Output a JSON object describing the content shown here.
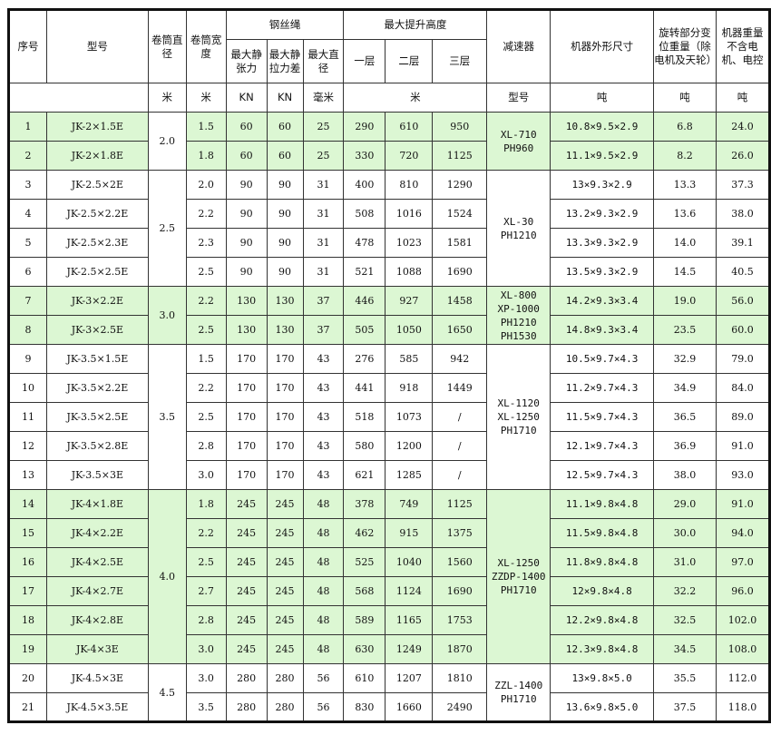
{
  "header": {
    "seq": "序号",
    "model": "型号",
    "drum_diameter": "卷筒直径",
    "drum_width": "卷筒宽度",
    "rope": "钢丝绳",
    "rope_max_static_tension": "最大静张力",
    "rope_max_static_tension_diff": "最大静拉力差",
    "rope_max_diameter": "最大直径",
    "max_lift_height": "最大提升高度",
    "layer1": "一层",
    "layer2": "二层",
    "layer3": "三层",
    "reducer": "减速器",
    "dimensions": "机器外形尺寸",
    "rotating_weight": "旋转部分变位重量（除电机及天轮）",
    "machine_weight": "机器重量不含电机、电控",
    "units": {
      "drum_diameter": "米",
      "drum_width": "米",
      "tension": "KN",
      "tension_diff": "KN",
      "rope_diameter": "毫米",
      "lift_height": "米",
      "reducer": "型号",
      "dimensions": "吨",
      "rotating_weight": "吨",
      "machine_weight": "吨"
    }
  },
  "groups": [
    {
      "drum_diameter": "2.0",
      "reducer": "XL-710\nPH960",
      "highlight": true,
      "rows": [
        [
          "1",
          "JK-2×1.5E",
          "1.5",
          "60",
          "60",
          "25",
          "290",
          "610",
          "950",
          "10.8×9.5×2.9",
          "6.8",
          "24.0"
        ],
        [
          "2",
          "JK-2×1.8E",
          "1.8",
          "60",
          "60",
          "25",
          "330",
          "720",
          "1125",
          "11.1×9.5×2.9",
          "8.2",
          "26.0"
        ]
      ]
    },
    {
      "drum_diameter": "2.5",
      "reducer": "XL-30\nPH1210",
      "highlight": false,
      "rows": [
        [
          "3",
          "JK-2.5×2E",
          "2.0",
          "90",
          "90",
          "31",
          "400",
          "810",
          "1290",
          "13×9.3×2.9",
          "13.3",
          "37.3"
        ],
        [
          "4",
          "JK-2.5×2.2E",
          "2.2",
          "90",
          "90",
          "31",
          "508",
          "1016",
          "1524",
          "13.2×9.3×2.9",
          "13.6",
          "38.0"
        ],
        [
          "5",
          "JK-2.5×2.3E",
          "2.3",
          "90",
          "90",
          "31",
          "478",
          "1023",
          "1581",
          "13.3×9.3×2.9",
          "14.0",
          "39.1"
        ],
        [
          "6",
          "JK-2.5×2.5E",
          "2.5",
          "90",
          "90",
          "31",
          "521",
          "1088",
          "1690",
          "13.5×9.3×2.9",
          "14.5",
          "40.5"
        ]
      ]
    },
    {
      "drum_diameter": "3.0",
      "reducer": "XL-800\nXP-1000\nPH1210\nPH1530",
      "highlight": true,
      "rows": [
        [
          "7",
          "JK-3×2.2E",
          "2.2",
          "130",
          "130",
          "37",
          "446",
          "927",
          "1458",
          "14.2×9.3×3.4",
          "19.0",
          "56.0"
        ],
        [
          "8",
          "JK-3×2.5E",
          "2.5",
          "130",
          "130",
          "37",
          "505",
          "1050",
          "1650",
          "14.8×9.3×3.4",
          "23.5",
          "60.0"
        ]
      ]
    },
    {
      "drum_diameter": "3.5",
      "reducer": "XL-1120\nXL-1250\nPH1710",
      "highlight": false,
      "rows": [
        [
          "9",
          "JK-3.5×1.5E",
          "1.5",
          "170",
          "170",
          "43",
          "276",
          "585",
          "942",
          "10.5×9.7×4.3",
          "32.9",
          "79.0"
        ],
        [
          "10",
          "JK-3.5×2.2E",
          "2.2",
          "170",
          "170",
          "43",
          "441",
          "918",
          "1449",
          "11.2×9.7×4.3",
          "34.9",
          "84.0"
        ],
        [
          "11",
          "JK-3.5×2.5E",
          "2.5",
          "170",
          "170",
          "43",
          "518",
          "1073",
          "/",
          "11.5×9.7×4.3",
          "36.5",
          "89.0"
        ],
        [
          "12",
          "JK-3.5×2.8E",
          "2.8",
          "170",
          "170",
          "43",
          "580",
          "1200",
          "/",
          "12.1×9.7×4.3",
          "36.9",
          "91.0"
        ],
        [
          "13",
          "JK-3.5×3E",
          "3.0",
          "170",
          "170",
          "43",
          "621",
          "1285",
          "/",
          "12.5×9.7×4.3",
          "38.0",
          "93.0"
        ]
      ]
    },
    {
      "drum_diameter": "4.0",
      "reducer": "XL-1250\nZZDP-1400\nPH1710",
      "highlight": true,
      "rows": [
        [
          "14",
          "JK-4×1.8E",
          "1.8",
          "245",
          "245",
          "48",
          "378",
          "749",
          "1125",
          "11.1×9.8×4.8",
          "29.0",
          "91.0"
        ],
        [
          "15",
          "JK-4×2.2E",
          "2.2",
          "245",
          "245",
          "48",
          "462",
          "915",
          "1375",
          "11.5×9.8×4.8",
          "30.0",
          "94.0"
        ],
        [
          "16",
          "JK-4×2.5E",
          "2.5",
          "245",
          "245",
          "48",
          "525",
          "1040",
          "1560",
          "11.8×9.8×4.8",
          "31.0",
          "97.0"
        ],
        [
          "17",
          "JK-4×2.7E",
          "2.7",
          "245",
          "245",
          "48",
          "568",
          "1124",
          "1690",
          "12×9.8×4.8",
          "32.2",
          "96.0"
        ],
        [
          "18",
          "JK-4×2.8E",
          "2.8",
          "245",
          "245",
          "48",
          "589",
          "1165",
          "1753",
          "12.2×9.8×4.8",
          "32.5",
          "102.0"
        ],
        [
          "19",
          "JK-4×3E",
          "3.0",
          "245",
          "245",
          "48",
          "630",
          "1249",
          "1870",
          "12.3×9.8×4.8",
          "34.5",
          "108.0"
        ]
      ]
    },
    {
      "drum_diameter": "4.5",
      "reducer": "ZZL-1400\nPH1710",
      "highlight": false,
      "rows": [
        [
          "20",
          "JK-4.5×3E",
          "3.0",
          "280",
          "280",
          "56",
          "610",
          "1207",
          "1810",
          "13×9.8×5.0",
          "35.5",
          "112.0"
        ],
        [
          "21",
          "JK-4.5×3.5E",
          "3.5",
          "280",
          "280",
          "56",
          "830",
          "1660",
          "2490",
          "13.6×9.8×5.0",
          "37.5",
          "118.0"
        ]
      ]
    }
  ],
  "colors": {
    "highlight": "#dcf7d3",
    "border": "#111111"
  }
}
